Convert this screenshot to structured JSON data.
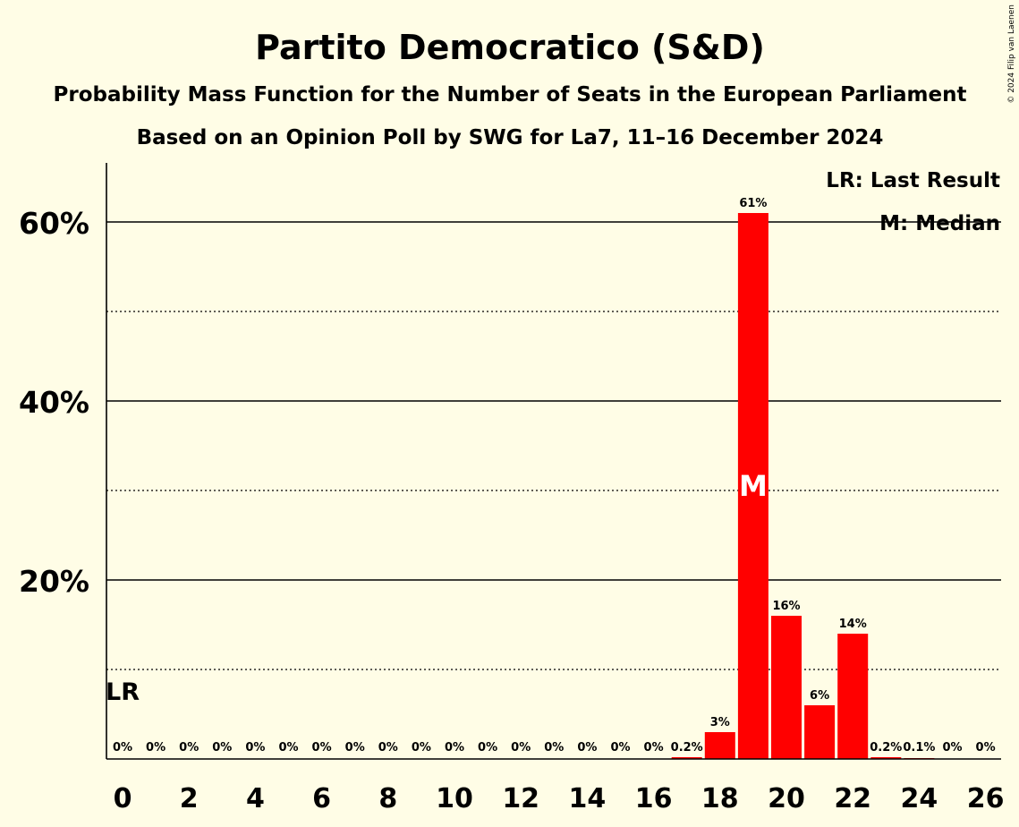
{
  "colors": {
    "background": "#fffde6",
    "bar": "#ff0000",
    "text": "#000000"
  },
  "copyright": "© 2024 Filip van Laenen",
  "chart_data": {
    "type": "bar",
    "title": "Partito Democratico (S&D)",
    "subtitle": "Probability Mass Function for the Number of Seats in the European Parliament",
    "subtitle2": "Based on an Opinion Poll by SWG for La7, 11–16 December 2024",
    "xlabel": "",
    "ylabel": "",
    "ylim": [
      0,
      66
    ],
    "yticks": [
      {
        "value": 20,
        "label": "20%"
      },
      {
        "value": 40,
        "label": "40%"
      },
      {
        "value": 60,
        "label": "60%"
      }
    ],
    "dotted_gridlines": [
      10,
      30,
      50
    ],
    "categories": [
      0,
      1,
      2,
      3,
      4,
      5,
      6,
      7,
      8,
      9,
      10,
      11,
      12,
      13,
      14,
      15,
      16,
      17,
      18,
      19,
      20,
      21,
      22,
      23,
      24,
      25,
      26
    ],
    "xtick_labels": [
      "0",
      "2",
      "4",
      "6",
      "8",
      "10",
      "12",
      "14",
      "16",
      "18",
      "20",
      "22",
      "24",
      "26"
    ],
    "values": [
      0,
      0,
      0,
      0,
      0,
      0,
      0,
      0,
      0,
      0,
      0,
      0,
      0,
      0,
      0,
      0,
      0,
      0.2,
      3,
      61,
      16,
      6,
      14,
      0.2,
      0.1,
      0,
      0
    ],
    "value_labels": [
      "0%",
      "0%",
      "0%",
      "0%",
      "0%",
      "0%",
      "0%",
      "0%",
      "0%",
      "0%",
      "0%",
      "0%",
      "0%",
      "0%",
      "0%",
      "0%",
      "0%",
      "0.2%",
      "3%",
      "61%",
      "16%",
      "6%",
      "14%",
      "0.2%",
      "0.1%",
      "0%",
      "0%"
    ],
    "last_result_seat": 0,
    "last_result_marker": "LR",
    "median_seat": 19,
    "median_marker": "M",
    "legend": [
      "LR: Last Result",
      "M: Median"
    ]
  }
}
